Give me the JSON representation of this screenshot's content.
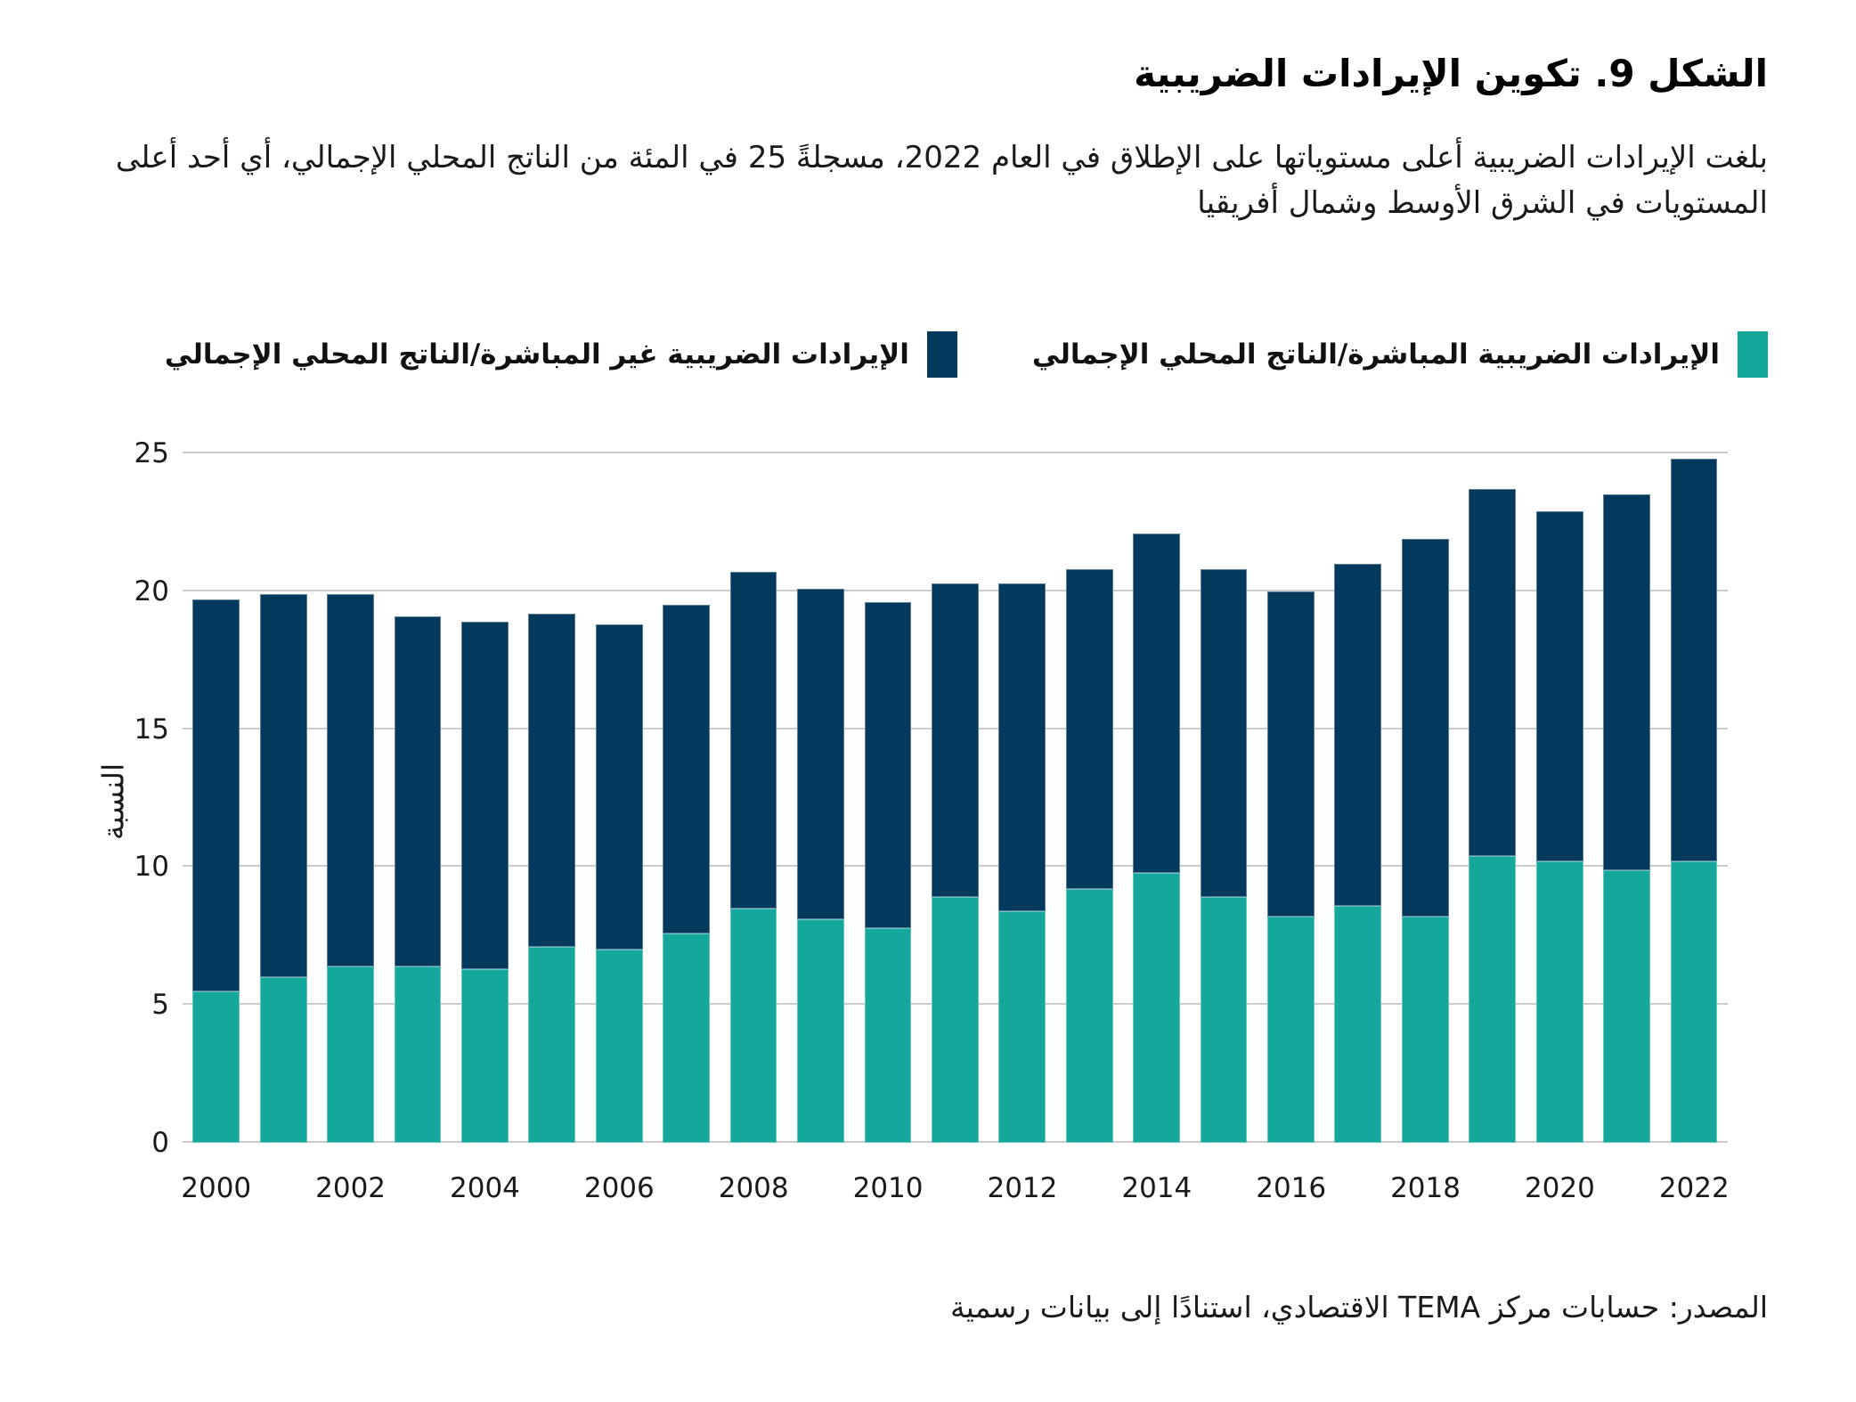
{
  "header": {
    "title": "الشكل 9. تكوين الإيرادات الضريبية",
    "subtitle": "بلغت الإيرادات الضريبية أعلى مستوياتها على الإطلاق في العام 2022، مسجلةً 25 في المئة من الناتج المحلي الإجمالي، أي أحد أعلى المستويات في الشرق الأوسط وشمال أفريقيا"
  },
  "legend": [
    {
      "label": "الإيرادات الضريبية المباشرة/الناتج المحلي الإجمالي",
      "color": "#14A79B"
    },
    {
      "label": "الإيرادات الضريبية غير المباشرة/الناتج المحلي الإجمالي",
      "color": "#04395E"
    }
  ],
  "chart_data": {
    "type": "bar",
    "stacked": true,
    "title": "الشكل 9. تكوين الإيرادات الضريبية",
    "ylabel": "النسبة",
    "xlabel": "",
    "ylim": [
      0,
      25
    ],
    "yticks": [
      0,
      5,
      10,
      15,
      20,
      25
    ],
    "grid": true,
    "legend_position": "top",
    "categories": [
      "2000",
      "2001",
      "2002",
      "2003",
      "2004",
      "2005",
      "2006",
      "2007",
      "2008",
      "2009",
      "2010",
      "2011",
      "2012",
      "2013",
      "2014",
      "2015",
      "2016",
      "2017",
      "2018",
      "2019",
      "2020",
      "2021",
      "2022"
    ],
    "xtick_labels": [
      "2000",
      "2002",
      "2004",
      "2006",
      "2008",
      "2010",
      "2012",
      "2014",
      "2016",
      "2018",
      "2020",
      "2022"
    ],
    "series": [
      {
        "name": "الإيرادات الضريبية المباشرة/الناتج المحلي الإجمالي",
        "color": "#14A79B",
        "values": [
          5.5,
          6.0,
          6.4,
          6.4,
          6.3,
          7.1,
          7.0,
          7.6,
          8.5,
          8.1,
          7.8,
          8.9,
          8.4,
          9.2,
          9.8,
          8.9,
          8.2,
          8.6,
          8.2,
          10.4,
          10.2,
          9.9,
          10.2
        ]
      },
      {
        "name": "الإيرادات الضريبية غير المباشرة/الناتج المحلي الإجمالي",
        "color": "#04395E",
        "values": [
          14.2,
          13.9,
          13.5,
          12.7,
          12.6,
          12.1,
          11.8,
          11.9,
          12.2,
          12.0,
          11.8,
          11.4,
          11.9,
          11.6,
          12.3,
          11.9,
          11.8,
          12.4,
          13.7,
          13.3,
          12.7,
          13.6,
          14.6
        ]
      }
    ]
  },
  "footer": {
    "source": "المصدر: حسابات مركز TEMA الاقتصادي، استنادًا إلى بيانات رسمية"
  }
}
